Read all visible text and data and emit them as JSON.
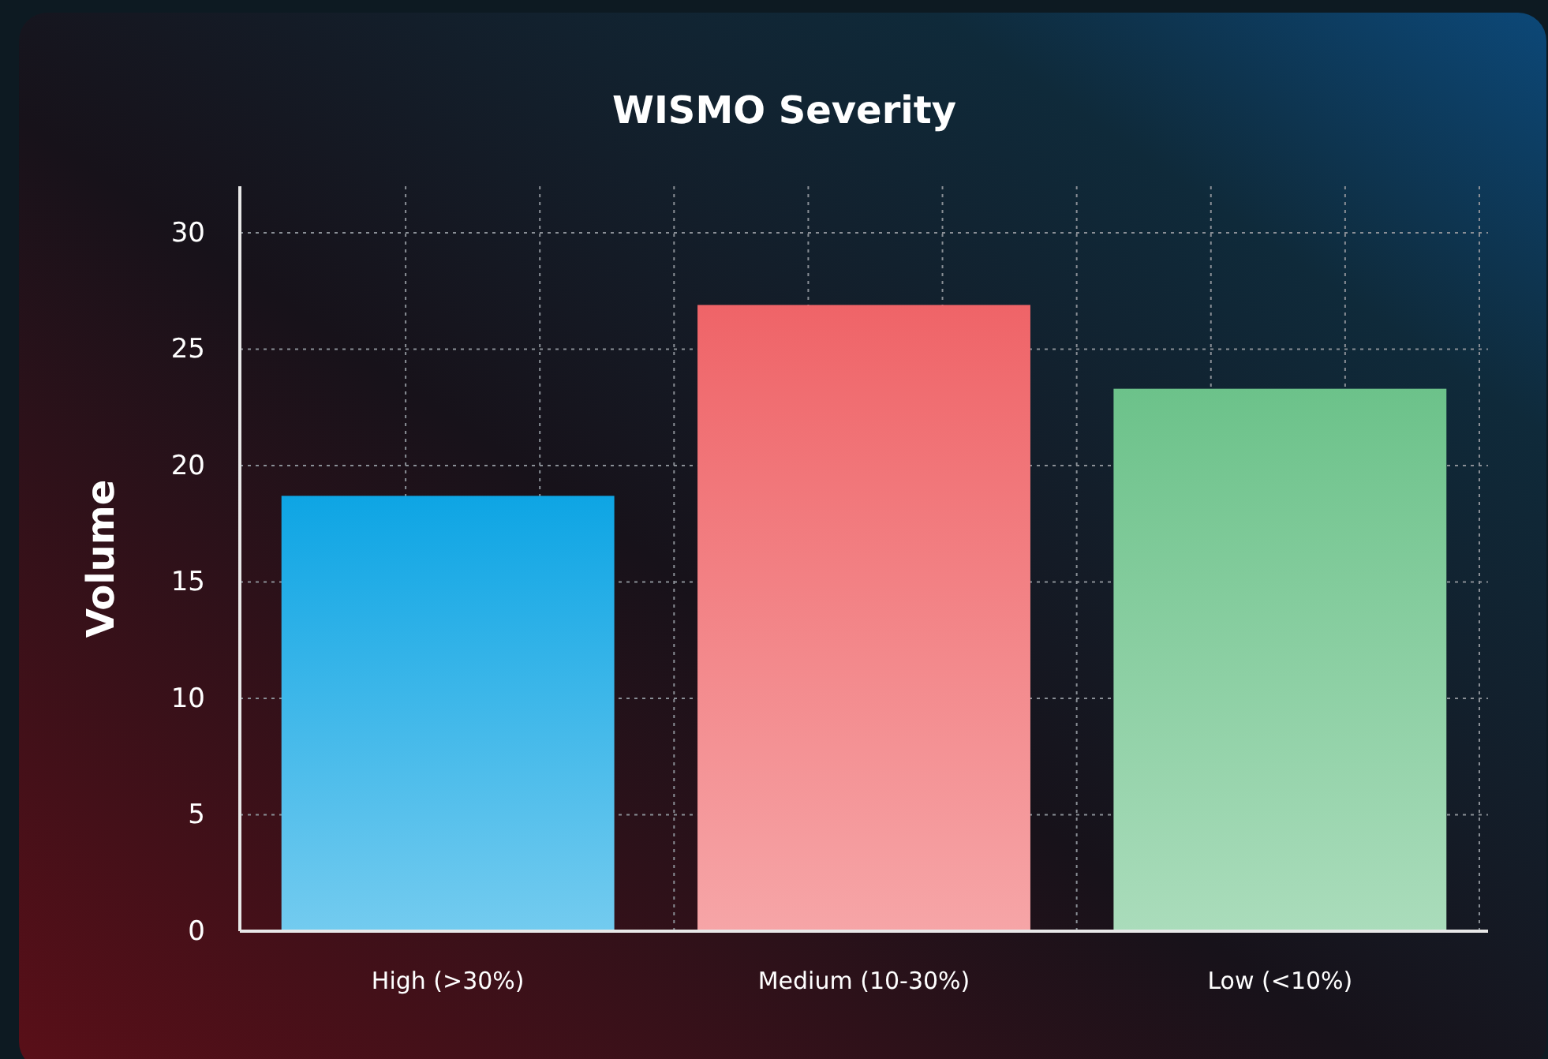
{
  "chart_data": {
    "type": "bar",
    "title": "WISMO Severity",
    "ylabel": "Volume",
    "categories": [
      "High (>30%)",
      "Medium (10-30%)",
      "Low (<10%)"
    ],
    "values": [
      18.7,
      26.9,
      23.3
    ],
    "colors": [
      "#0ea5e4",
      "#ef6468",
      "#6cc28a"
    ],
    "ylim": [
      0,
      32
    ],
    "yticks": [
      0,
      5,
      10,
      15,
      20,
      25,
      30
    ],
    "grid": true
  }
}
